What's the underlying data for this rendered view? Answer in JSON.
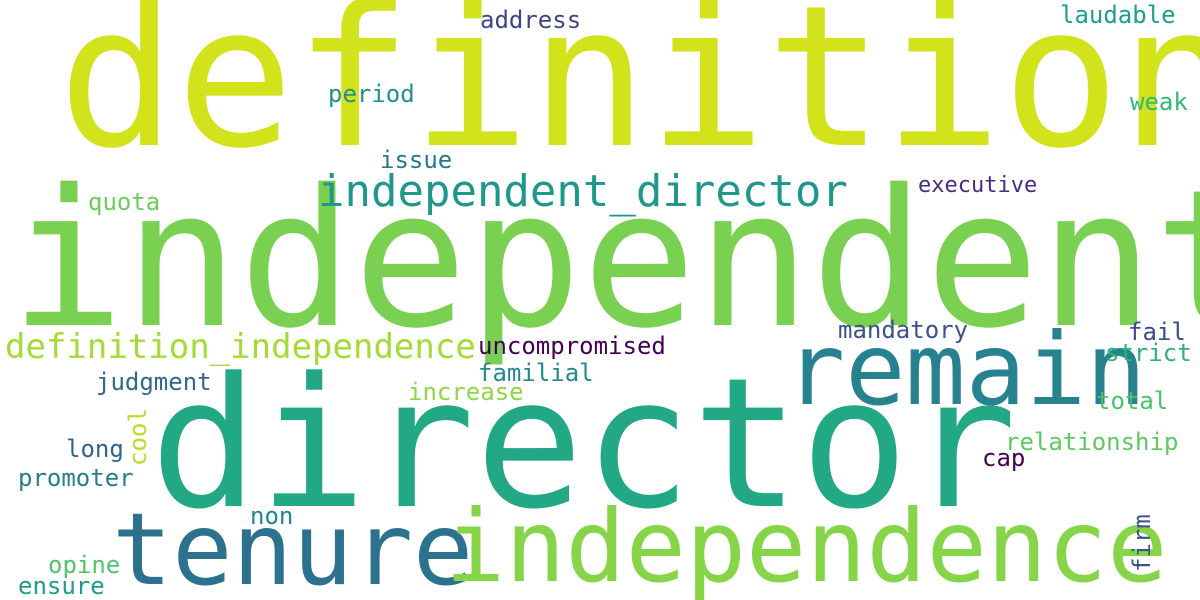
{
  "word_cloud": {
    "words": [
      {
        "id": "w1",
        "text": "definition",
        "color": "#d2e21b"
      },
      {
        "id": "w2",
        "text": "independent",
        "color": "#7ad151"
      },
      {
        "id": "w3",
        "text": "director",
        "color": "#22a884"
      },
      {
        "id": "w4",
        "text": "remain",
        "color": "#26828e"
      },
      {
        "id": "w5",
        "text": "tenure",
        "color": "#2c728e"
      },
      {
        "id": "w6",
        "text": "independence",
        "color": "#86d549"
      },
      {
        "id": "w7",
        "text": "independent_director",
        "color": "#1f988b"
      },
      {
        "id": "w8",
        "text": "definition_independence",
        "color": "#a5db36"
      },
      {
        "id": "w9",
        "text": "uncompromised",
        "color": "#440154"
      },
      {
        "id": "w10",
        "text": "executive",
        "color": "#472d7b"
      },
      {
        "id": "w11",
        "text": "mandatory",
        "color": "#3b528b"
      },
      {
        "id": "w12",
        "text": "address",
        "color": "#414487"
      },
      {
        "id": "w13",
        "text": "laudable",
        "color": "#1f9e89"
      },
      {
        "id": "w14",
        "text": "period",
        "color": "#21918c"
      },
      {
        "id": "w15",
        "text": "weak",
        "color": "#35b779"
      },
      {
        "id": "w16",
        "text": "issue",
        "color": "#2a788e"
      },
      {
        "id": "w17",
        "text": "quota",
        "color": "#6ccd5a"
      },
      {
        "id": "w18",
        "text": "fail",
        "color": "#3e4a89"
      },
      {
        "id": "w19",
        "text": "strict",
        "color": "#2db27d"
      },
      {
        "id": "w20",
        "text": "familial",
        "color": "#23898e"
      },
      {
        "id": "w21",
        "text": "judgment",
        "color": "#31688e"
      },
      {
        "id": "w22",
        "text": "increase",
        "color": "#8fd744"
      },
      {
        "id": "w23",
        "text": "total",
        "color": "#4ac16d"
      },
      {
        "id": "w24",
        "text": "relationship",
        "color": "#5ec962"
      },
      {
        "id": "w25",
        "text": "long",
        "color": "#33638d"
      },
      {
        "id": "w26",
        "text": "cap",
        "color": "#440154"
      },
      {
        "id": "w27",
        "text": "promoter",
        "color": "#277f8e"
      },
      {
        "id": "w28",
        "text": "non",
        "color": "#25848e"
      },
      {
        "id": "w29",
        "text": "opine",
        "color": "#50c46a"
      },
      {
        "id": "w30",
        "text": "ensure",
        "color": "#1e9b8a"
      },
      {
        "id": "w31",
        "text": "cool",
        "color": "#b5de2b",
        "vertical": true
      },
      {
        "id": "w32",
        "text": "firm",
        "color": "#3b528b",
        "vertical": true
      }
    ]
  }
}
